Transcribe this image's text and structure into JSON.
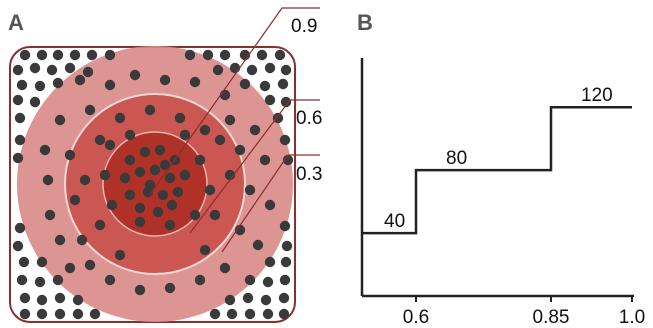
{
  "panel_a": {
    "label": "A",
    "zones": [
      {
        "label": "0.9",
        "color": "#b03128"
      },
      {
        "label": "0.6",
        "color": "#c8514b"
      },
      {
        "label": "0.3",
        "color": "#d98a88"
      }
    ],
    "border_color": "#8b2e2e",
    "dot_color": "#3a3a3a"
  },
  "panel_b": {
    "label": "B"
  },
  "chart_data": {
    "type": "line",
    "subtype": "step",
    "title": "",
    "xlabel": "",
    "ylabel": "",
    "x_ticks": [
      "0.6",
      "0.85",
      "1.0"
    ],
    "steps": [
      {
        "from": 0.5,
        "to": 0.6,
        "value": 40,
        "label": "40"
      },
      {
        "from": 0.6,
        "to": 0.85,
        "value": 80,
        "label": "80"
      },
      {
        "from": 0.85,
        "to": 1.0,
        "value": 120,
        "label": "120"
      }
    ],
    "xlim": [
      0.5,
      1.0
    ],
    "ylim": [
      0,
      150
    ],
    "grid": false,
    "legend": "none"
  }
}
